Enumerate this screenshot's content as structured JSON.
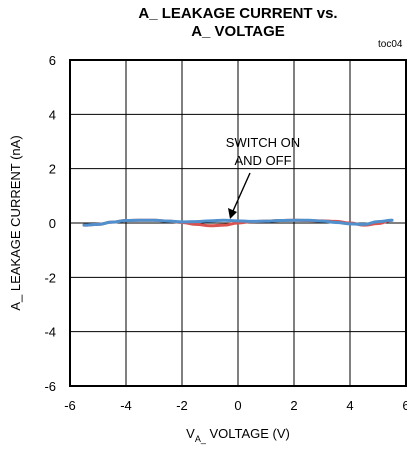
{
  "chart_data": {
    "type": "line",
    "title_line1": "A_ LEAKAGE CURRENT vs.",
    "title_line2": "A_ VOLTAGE",
    "figure_code": "toc04",
    "ylabel": "A_ LEAKAGE CURRENT (nA)",
    "xlabel_prefix": "V",
    "xlabel_subscript": "A_",
    "xlabel_suffix": " VOLTAGE (V)",
    "xlim": [
      -6,
      6
    ],
    "ylim": [
      -6,
      6
    ],
    "x_ticks": [
      "-6",
      "-4",
      "-2",
      "0",
      "2",
      "4",
      "6"
    ],
    "y_ticks": [
      "6",
      "4",
      "2",
      "0",
      "-2",
      "-4",
      "-6"
    ],
    "grid": true,
    "annotation_line1": "SWITCH ON",
    "annotation_line2": "AND OFF",
    "series": [
      {
        "color": "#d9534f",
        "x": [
          -5.5,
          -5.0,
          -4.5,
          -4.0,
          -3.5,
          -3.0,
          -2.5,
          -2.0,
          -1.5,
          -1.0,
          -0.5,
          0.0,
          0.5,
          1.0,
          1.5,
          2.0,
          2.5,
          3.0,
          3.5,
          4.0,
          4.5,
          5.0,
          5.5
        ],
        "y": [
          -0.08,
          -0.05,
          0.03,
          0.09,
          0.1,
          0.1,
          0.07,
          0.02,
          -0.05,
          -0.1,
          -0.08,
          0.0,
          0.05,
          0.07,
          0.09,
          0.1,
          0.09,
          0.08,
          0.06,
          0.0,
          -0.08,
          -0.02,
          0.1
        ]
      },
      {
        "color": "#4f90cd",
        "x": [
          -5.5,
          -5.0,
          -4.5,
          -4.0,
          -3.5,
          -3.0,
          -2.5,
          -2.0,
          -1.5,
          -1.0,
          -0.5,
          0.0,
          0.5,
          1.0,
          1.5,
          2.0,
          2.5,
          3.0,
          3.5,
          4.0,
          4.5,
          5.0,
          5.5
        ],
        "y": [
          -0.08,
          -0.05,
          0.03,
          0.09,
          0.1,
          0.1,
          0.07,
          0.04,
          0.05,
          0.08,
          0.1,
          0.08,
          0.06,
          0.07,
          0.09,
          0.1,
          0.1,
          0.07,
          0.02,
          -0.03,
          -0.05,
          0.05,
          0.1
        ]
      }
    ]
  }
}
